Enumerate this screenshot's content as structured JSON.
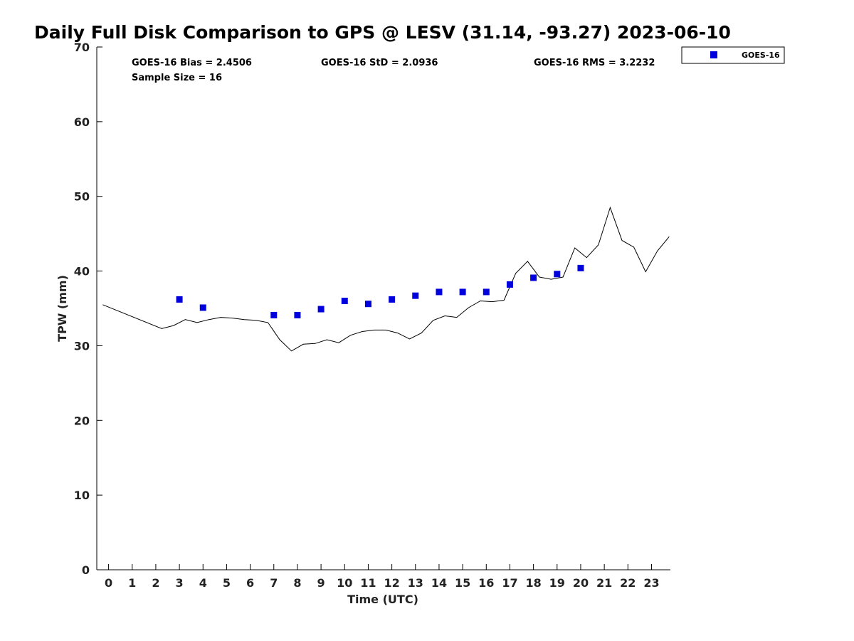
{
  "chart_data": {
    "type": "scatter",
    "title": "Daily Full Disk Comparison to GPS @ LESV (31.14, -93.27) 2023-06-10",
    "xlabel": "Time (UTC)",
    "ylabel": "TPW (mm)",
    "xlim": [
      -0.5,
      23.8
    ],
    "ylim": [
      0,
      70
    ],
    "xticks": [
      0,
      1,
      2,
      3,
      4,
      5,
      6,
      7,
      8,
      9,
      10,
      11,
      12,
      13,
      14,
      15,
      16,
      17,
      18,
      19,
      20,
      21,
      22,
      23
    ],
    "yticks": [
      0,
      10,
      20,
      30,
      40,
      50,
      60,
      70
    ],
    "grid": false,
    "legend_position": "outside-top-right",
    "stats": {
      "bias": "GOES-16 Bias = 2.4506",
      "std": "GOES-16 StD = 2.0936",
      "rms": "GOES-16 RMS = 3.2232",
      "sample": "Sample Size = 16"
    },
    "series": [
      {
        "name": "GOES-16",
        "kind": "scatter",
        "marker": "square",
        "color": "#0000dd",
        "x": [
          3.0,
          4.0,
          7.0,
          8.0,
          9.0,
          10.0,
          11.0,
          12.0,
          13.0,
          14.0,
          15.0,
          16.0,
          17.0,
          18.0,
          19.0,
          20.0
        ],
        "y": [
          36.2,
          35.1,
          34.1,
          34.1,
          34.9,
          36.0,
          35.6,
          36.2,
          36.7,
          37.2,
          37.2,
          37.2,
          38.2,
          39.1,
          39.6,
          40.4
        ]
      },
      {
        "kind": "line",
        "color": "#000000",
        "x": [
          -0.25,
          2.25,
          2.75,
          3.25,
          3.75,
          4.25,
          4.75,
          5.25,
          5.75,
          6.25,
          6.75,
          7.25,
          7.75,
          8.25,
          8.75,
          9.25,
          9.75,
          10.25,
          10.75,
          11.25,
          11.75,
          12.25,
          12.75,
          13.25,
          13.75,
          14.25,
          14.75,
          15.25,
          15.75,
          16.25,
          16.75,
          17.25,
          17.75,
          18.25,
          18.75,
          19.25,
          19.75,
          20.25,
          20.75,
          21.25,
          21.75,
          22.25,
          22.75,
          23.25,
          23.75
        ],
        "y": [
          35.5,
          32.3,
          32.7,
          33.5,
          33.1,
          33.5,
          33.8,
          33.7,
          33.5,
          33.4,
          33.1,
          30.8,
          29.3,
          30.2,
          30.3,
          30.8,
          30.4,
          31.4,
          31.9,
          32.1,
          32.1,
          31.7,
          30.9,
          31.7,
          33.4,
          34.0,
          33.8,
          35.1,
          36.0,
          35.9,
          36.1,
          39.7,
          41.3,
          39.2,
          38.9,
          39.2,
          43.1,
          41.8,
          43.5,
          48.5,
          44.1,
          43.2,
          39.9,
          42.7,
          44.6
        ]
      }
    ]
  }
}
